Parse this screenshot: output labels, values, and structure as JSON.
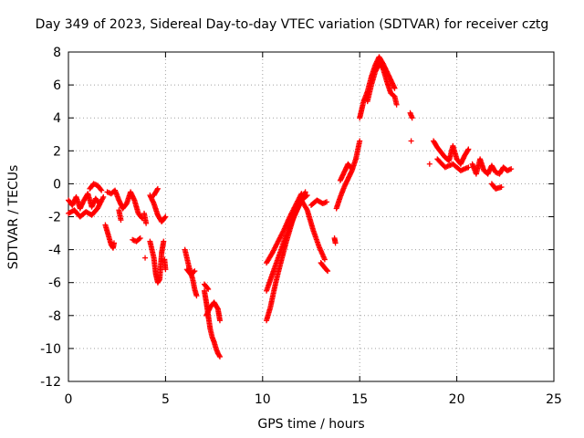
{
  "chart_data": {
    "type": "scatter",
    "title": "Day 349 of 2023, Sidereal Day-to-day VTEC variation (SDTVAR) for receiver cztg",
    "xlabel": "GPS time / hours",
    "ylabel": "SDTVAR / TECUs",
    "xlim": [
      0,
      25
    ],
    "ylim": [
      -12,
      8
    ],
    "xticks": [
      0,
      5,
      10,
      15,
      20,
      25
    ],
    "yticks": [
      -12,
      -10,
      -8,
      -6,
      -4,
      -2,
      0,
      2,
      4,
      6,
      8
    ],
    "grid": true,
    "marker": "+",
    "color": "#ff0000",
    "series": [
      {
        "name": "SDTVAR",
        "segments": [
          {
            "x": [
              0.0,
              0.2,
              0.4,
              0.6,
              0.8,
              1.0,
              1.2,
              1.4,
              1.6
            ],
            "y": [
              -1.0,
              -1.3,
              -0.8,
              -1.5,
              -1.0,
              -0.6,
              -1.4,
              -0.9,
              -1.2
            ]
          },
          {
            "x": [
              0.0,
              0.3,
              0.6,
              0.9,
              1.2,
              1.5,
              1.8
            ],
            "y": [
              -1.8,
              -1.6,
              -2.0,
              -1.7,
              -1.9,
              -1.5,
              -0.8
            ]
          },
          {
            "x": [
              1.1,
              1.3,
              1.5,
              1.7
            ],
            "y": [
              -0.3,
              0.0,
              -0.1,
              -0.4
            ]
          },
          {
            "x": [
              1.9,
              2.0,
              2.1,
              2.2,
              2.3,
              2.35
            ],
            "y": [
              -2.5,
              -2.9,
              -3.3,
              -3.7,
              -3.9,
              -3.6
            ]
          },
          {
            "x": [
              2.0,
              2.2,
              2.4,
              2.6,
              2.8,
              3.0,
              3.2,
              3.4,
              3.6,
              3.8
            ],
            "y": [
              -0.5,
              -0.6,
              -0.4,
              -1.0,
              -1.5,
              -1.2,
              -0.5,
              -1.0,
              -1.8,
              -2.1
            ]
          },
          {
            "x": [
              2.6,
              2.7
            ],
            "y": [
              -1.6,
              -2.2
            ]
          },
          {
            "x": [
              3.3,
              3.5,
              3.7
            ],
            "y": [
              -3.4,
              -3.5,
              -3.3
            ]
          },
          {
            "x": [
              3.9,
              4.0
            ],
            "y": [
              -1.8,
              -2.4
            ]
          },
          {
            "x": [
              3.95
            ],
            "y": [
              -4.5
            ]
          },
          {
            "x": [
              4.2,
              4.4,
              4.6,
              4.8,
              5.0
            ],
            "y": [
              -0.7,
              -1.2,
              -1.9,
              -2.3,
              -2.0
            ]
          },
          {
            "x": [
              4.2,
              4.3,
              4.4,
              4.5,
              4.6,
              4.7,
              4.8,
              4.9
            ],
            "y": [
              -3.5,
              -4.0,
              -4.5,
              -5.5,
              -6.0,
              -5.8,
              -4.2,
              -3.5
            ]
          },
          {
            "x": [
              4.4,
              4.6
            ],
            "y": [
              -0.7,
              -0.3
            ]
          },
          {
            "x": [
              4.95,
              5.0
            ],
            "y": [
              -4.6,
              -5.2
            ]
          },
          {
            "x": [
              6.0,
              6.1,
              6.2,
              6.3,
              6.4,
              6.5,
              6.6
            ],
            "y": [
              -4.0,
              -4.5,
              -5.0,
              -5.4,
              -5.8,
              -6.4,
              -6.8
            ]
          },
          {
            "x": [
              6.1,
              6.3,
              6.5
            ],
            "y": [
              -5.2,
              -5.5,
              -5.3
            ]
          },
          {
            "x": [
              7.0,
              7.1,
              7.2,
              7.3,
              7.4,
              7.5,
              7.6,
              7.7,
              7.8
            ],
            "y": [
              -6.5,
              -7.2,
              -8.0,
              -8.8,
              -9.3,
              -9.6,
              -10.0,
              -10.3,
              -10.5
            ]
          },
          {
            "x": [
              7.1,
              7.3,
              7.5,
              7.7,
              7.8
            ],
            "y": [
              -8.0,
              -7.5,
              -7.2,
              -7.6,
              -8.3
            ]
          },
          {
            "x": [
              7.0,
              7.2
            ],
            "y": [
              -6.1,
              -6.4
            ]
          },
          {
            "x": [
              10.2,
              10.4,
              10.6,
              10.8,
              11.0,
              11.2,
              11.4,
              11.6,
              11.8,
              12.0,
              12.2
            ],
            "y": [
              -8.3,
              -7.5,
              -6.4,
              -5.4,
              -4.5,
              -3.6,
              -2.8,
              -2.0,
              -1.5,
              -1.0,
              -0.5
            ]
          },
          {
            "x": [
              10.2,
              10.5,
              10.8,
              11.1,
              11.4,
              11.7,
              12.0,
              12.3
            ],
            "y": [
              -6.5,
              -5.5,
              -4.5,
              -3.5,
              -2.6,
              -1.8,
              -1.0,
              -0.7
            ]
          },
          {
            "x": [
              10.2,
              10.5,
              10.8,
              11.1,
              11.4,
              11.7,
              12.0
            ],
            "y": [
              -4.8,
              -4.2,
              -3.5,
              -2.8,
              -2.0,
              -1.3,
              -0.6
            ]
          },
          {
            "x": [
              12.0,
              12.3,
              12.6,
              12.9,
              13.2
            ],
            "y": [
              -1.0,
              -1.6,
              -2.8,
              -3.8,
              -4.6
            ]
          },
          {
            "x": [
              12.5,
              12.8,
              13.1,
              13.3
            ],
            "y": [
              -1.3,
              -1.0,
              -1.2,
              -1.1
            ]
          },
          {
            "x": [
              13.0,
              13.2,
              13.35
            ],
            "y": [
              -4.8,
              -5.1,
              -5.3
            ]
          },
          {
            "x": [
              13.7,
              13.75
            ],
            "y": [
              -3.3,
              -3.6
            ]
          },
          {
            "x": [
              13.8,
              14.0,
              14.2,
              14.4,
              14.6,
              14.8,
              15.0
            ],
            "y": [
              -1.5,
              -0.8,
              -0.2,
              0.3,
              0.8,
              1.5,
              2.6
            ]
          },
          {
            "x": [
              14.0,
              14.2,
              14.4,
              14.6
            ],
            "y": [
              0.2,
              0.7,
              1.2,
              0.9
            ]
          },
          {
            "x": [
              15.0,
              15.1,
              15.2,
              15.4,
              15.6,
              15.8,
              16.0,
              16.2,
              16.4,
              16.6,
              16.8
            ],
            "y": [
              4.0,
              4.5,
              5.0,
              5.6,
              6.5,
              7.2,
              7.7,
              7.3,
              6.8,
              6.3,
              5.8
            ]
          },
          {
            "x": [
              15.4,
              15.6,
              15.8,
              16.0,
              16.2,
              16.4,
              16.6,
              16.8,
              16.9
            ],
            "y": [
              5.0,
              6.0,
              6.8,
              7.3,
              7.0,
              6.2,
              5.5,
              5.3,
              4.8
            ]
          },
          {
            "x": [
              17.6,
              17.7
            ],
            "y": [
              4.3,
              4.0
            ]
          },
          {
            "x": [
              17.65
            ],
            "y": [
              2.6
            ]
          },
          {
            "x": [
              18.6
            ],
            "y": [
              1.2
            ]
          },
          {
            "x": [
              18.8,
              19.0,
              19.2,
              19.4,
              19.6,
              19.8,
              20.0,
              20.2,
              20.4,
              20.6
            ],
            "y": [
              2.6,
              2.2,
              1.9,
              1.6,
              1.4,
              2.3,
              1.5,
              1.2,
              1.7,
              2.1
            ]
          },
          {
            "x": [
              19.0,
              19.4,
              19.8,
              20.2,
              20.6
            ],
            "y": [
              1.5,
              1.0,
              1.2,
              0.8,
              1.0
            ]
          },
          {
            "x": [
              20.8,
              21.0,
              21.2,
              21.4,
              21.6,
              21.8,
              22.0,
              22.2,
              22.4,
              22.6,
              22.8
            ],
            "y": [
              1.2,
              0.6,
              1.5,
              0.8,
              0.6,
              1.1,
              0.7,
              0.6,
              1.0,
              0.8,
              0.9
            ]
          },
          {
            "x": [
              21.8,
              22.0,
              22.3
            ],
            "y": [
              0.0,
              -0.3,
              -0.2
            ]
          }
        ]
      }
    ]
  }
}
